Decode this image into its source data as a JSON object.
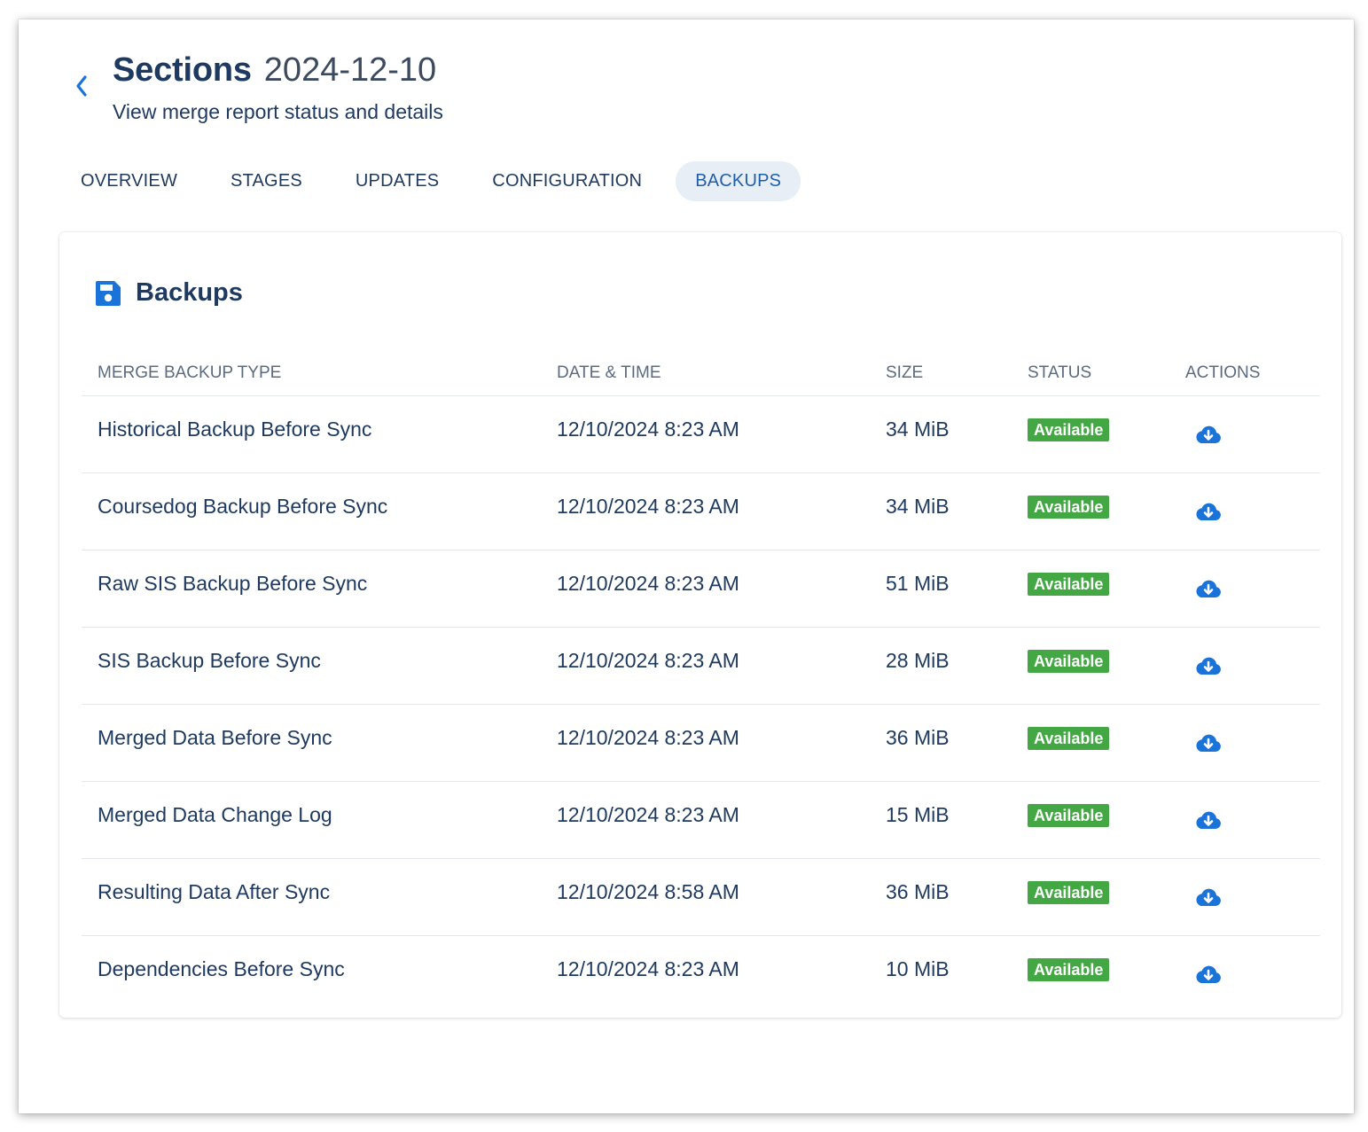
{
  "header": {
    "title": "Sections",
    "date": "2024-12-10",
    "subtitle": "View merge report status and details"
  },
  "tabs": [
    {
      "label": "OVERVIEW",
      "active": false
    },
    {
      "label": "STAGES",
      "active": false
    },
    {
      "label": "UPDATES",
      "active": false
    },
    {
      "label": "CONFIGURATION",
      "active": false
    },
    {
      "label": "BACKUPS",
      "active": true
    }
  ],
  "card": {
    "title": "Backups",
    "icon": "floppy-disk-icon"
  },
  "table": {
    "columns": [
      "MERGE BACKUP TYPE",
      "DATE & TIME",
      "SIZE",
      "STATUS",
      "ACTIONS"
    ],
    "rows": [
      {
        "type": "Historical Backup Before Sync",
        "datetime": "12/10/2024 8:23 AM",
        "size": "34 MiB",
        "status": "Available"
      },
      {
        "type": "Coursedog Backup Before Sync",
        "datetime": "12/10/2024 8:23 AM",
        "size": "34 MiB",
        "status": "Available"
      },
      {
        "type": "Raw SIS Backup Before Sync",
        "datetime": "12/10/2024 8:23 AM",
        "size": "51 MiB",
        "status": "Available"
      },
      {
        "type": "SIS Backup Before Sync",
        "datetime": "12/10/2024 8:23 AM",
        "size": "28 MiB",
        "status": "Available"
      },
      {
        "type": "Merged Data Before Sync",
        "datetime": "12/10/2024 8:23 AM",
        "size": "36 MiB",
        "status": "Available"
      },
      {
        "type": "Merged Data Change Log",
        "datetime": "12/10/2024 8:23 AM",
        "size": "15 MiB",
        "status": "Available"
      },
      {
        "type": "Resulting Data After Sync",
        "datetime": "12/10/2024 8:58 AM",
        "size": "36 MiB",
        "status": "Available"
      },
      {
        "type": "Dependencies Before Sync",
        "datetime": "12/10/2024 8:23 AM",
        "size": "10 MiB",
        "status": "Available"
      }
    ]
  },
  "colors": {
    "accent": "#1a73d9",
    "heading": "#1f3a60",
    "status_available": "#43a843",
    "active_tab_bg": "#e8eef6"
  }
}
